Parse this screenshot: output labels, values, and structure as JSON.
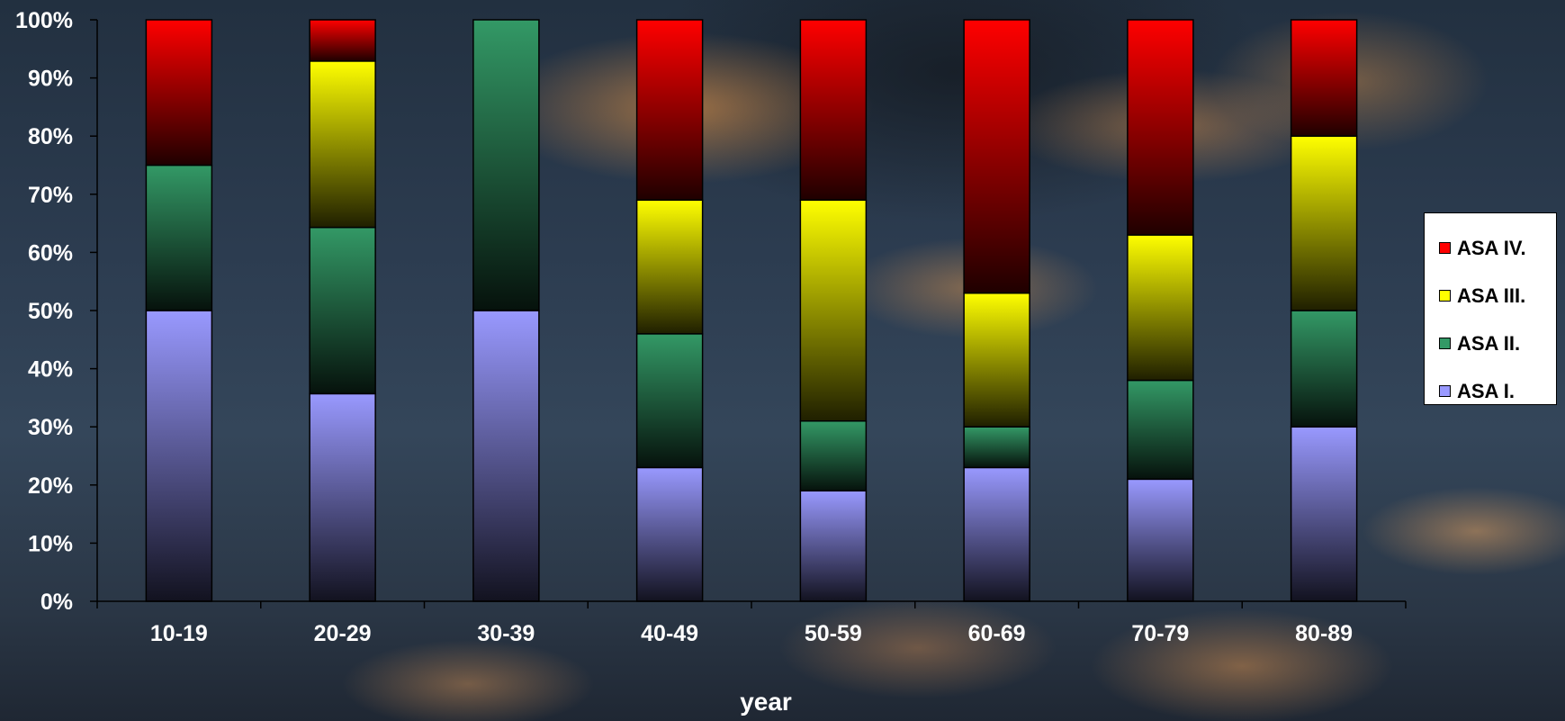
{
  "chart_data": {
    "type": "bar",
    "stacked": true,
    "percent": true,
    "categories": [
      "10-19",
      "20-29",
      "30-39",
      "40-49",
      "50-59",
      "60-69",
      "70-79",
      "80-89"
    ],
    "series": [
      {
        "name": "ASA I.",
        "color": "#9999ff",
        "values": [
          50,
          35.7,
          50,
          23,
          19,
          23,
          21,
          30
        ]
      },
      {
        "name": "ASA II.",
        "color": "#339966",
        "values": [
          25,
          28.6,
          50,
          23,
          12,
          7,
          17,
          20
        ]
      },
      {
        "name": "ASA III.",
        "color": "#ffff00",
        "values": [
          0,
          28.6,
          0,
          23,
          38,
          23,
          25,
          30
        ]
      },
      {
        "name": "ASA IV.",
        "color": "#ff0000",
        "values": [
          25,
          7.1,
          0,
          31,
          31,
          47,
          37,
          20
        ]
      }
    ],
    "xlabel": "year",
    "ylabel": "",
    "ylim": [
      0,
      100
    ],
    "yticks": [
      "0%",
      "10%",
      "20%",
      "30%",
      "40%",
      "50%",
      "60%",
      "70%",
      "80%",
      "90%",
      "100%"
    ],
    "legend": {
      "position": "right",
      "items": [
        {
          "label": "ASA IV.",
          "color": "#ff0000"
        },
        {
          "label": "ASA III.",
          "color": "#ffff00"
        },
        {
          "label": "ASA II.",
          "color": "#339966"
        },
        {
          "label": "ASA I.",
          "color": "#9999ff"
        }
      ]
    }
  }
}
